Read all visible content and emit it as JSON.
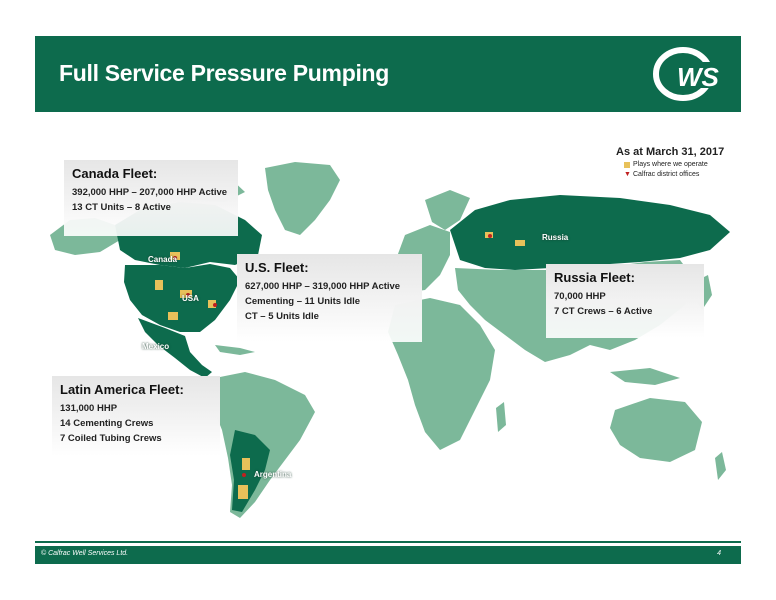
{
  "header": {
    "title": "Full Service Pressure Pumping"
  },
  "logo": {
    "text": "CWS"
  },
  "date_label": "As at March 31, 2017",
  "legend": {
    "items": [
      {
        "label": "Plays where we operate",
        "icon": "play-swatch-icon"
      },
      {
        "label": "Calfrac district offices",
        "icon": "map-pin-icon"
      }
    ]
  },
  "map": {
    "labels": {
      "canada": "Canada",
      "usa": "USA",
      "mexico": "Mexico",
      "argentina": "Argentina",
      "russia": "Russia"
    },
    "colors": {
      "operate": "#0d6b4d",
      "land": "#7cb89a",
      "play": "#e8c15a"
    }
  },
  "fleets": {
    "canada": {
      "title": "Canada Fleet:",
      "lines": [
        "392,000 HHP – 207,000 HHP Active",
        "13 CT Units – 8 Active"
      ]
    },
    "us": {
      "title": "U.S. Fleet:",
      "lines": [
        "627,000 HHP – 319,000 HHP Active",
        "Cementing – 11 Units Idle",
        "CT – 5 Units Idle"
      ]
    },
    "russia": {
      "title": "Russia Fleet:",
      "lines": [
        "70,000 HHP",
        "7 CT Crews – 6 Active"
      ]
    },
    "latam": {
      "title": "Latin America Fleet:",
      "lines": [
        "131,000 HHP",
        "14 Cementing Crews",
        "7 Coiled Tubing Crews"
      ]
    }
  },
  "footer": {
    "copyright": "© Calfrac Well Services Ltd.",
    "page": "4"
  }
}
